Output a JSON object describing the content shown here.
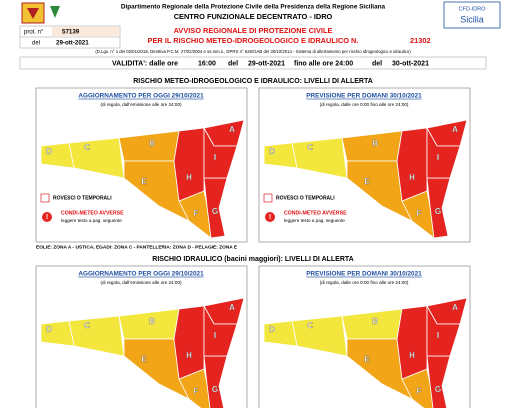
{
  "header": {
    "institution": "Dipartimento Regionale della Protezione Civile della Presidenza della Regione Siciliana",
    "centre": "CENTRO FUNZIONALE DECENTRATO - IDRO",
    "logo": "CFD-IDRO",
    "logo_region": "Sicilia"
  },
  "protocol": {
    "label": "prot. n°",
    "number": "57139",
    "date_label": "del",
    "date": "29-ott-2021"
  },
  "notice": {
    "title": "AVVISO REGIONALE DI PROTEZIONE CIVILE",
    "subtitle": "PER IL RISCHIO METEO-IDROGEOLOGICO E IDRAULICO N.",
    "number": "21302",
    "legal": "(D.Lgs. n° 1 del 02/01/2018, Direttiva P.C.M. 27/02/2004 e ss.mm.ii., DPRS n° 626/GAB del 30/10/2014 - Sistema di allertamento per rischio idrogeologico e idraulico)"
  },
  "validity": {
    "label": "VALIDITA': dalle ore",
    "from_time": "16:00",
    "from_label": "del",
    "from_date": "29-ott-2021",
    "until": "fino alle ore 24:00",
    "to_label": "del",
    "to_date": "30-ott-2021"
  },
  "sections": [
    {
      "title": "RISCHIO METEO-IDROGEOLOGICO E IDRAULICO: LIVELLI DI ALLERTA",
      "legend": {
        "storms": "ROVESCI O TEMPORALI",
        "adverse": "CONDI-METEO AVVERSE",
        "adverse_note": "leggere testo a pag. seguente"
      },
      "note": "EOLIE: ZONA A - USTICA, EGADI: ZONA C - PANTELLERIA: ZONA D - PELAGIE: ZONA E",
      "panels": [
        {
          "title": "AGGIORNAMENTO PER OGGI 29/10/2021",
          "subtitle": "(di regola, dall'emissione alle ore 24:00)",
          "zones": [
            {
              "label": "A",
              "color": "#e52420"
            },
            {
              "label": "B",
              "color": "#f2a516"
            },
            {
              "label": "C",
              "color": "#f3e63c"
            },
            {
              "label": "D",
              "color": "#f3e63c"
            },
            {
              "label": "E",
              "color": "#f2a516"
            },
            {
              "label": "F",
              "color": "#f2a516"
            },
            {
              "label": "G",
              "color": "#e52420"
            },
            {
              "label": "H",
              "color": "#e52420"
            },
            {
              "label": "I",
              "color": "#e52420"
            }
          ]
        },
        {
          "title": "PREVISIONE PER DOMANI 30/10/2021",
          "subtitle": "(di regola, dalle ore 0:00 fino alle ore 24:00)",
          "zones": [
            {
              "label": "A",
              "color": "#e52420"
            },
            {
              "label": "B",
              "color": "#f2a516"
            },
            {
              "label": "C",
              "color": "#f3e63c"
            },
            {
              "label": "D",
              "color": "#f3e63c"
            },
            {
              "label": "E",
              "color": "#f2a516"
            },
            {
              "label": "F",
              "color": "#f2a516"
            },
            {
              "label": "G",
              "color": "#e52420"
            },
            {
              "label": "H",
              "color": "#e52420"
            },
            {
              "label": "I",
              "color": "#e52420"
            }
          ]
        }
      ]
    },
    {
      "title": "RISCHIO IDRAULICO (bacini maggiori): LIVELLI DI ALLERTA",
      "panels": [
        {
          "title": "AGGIORNAMENTO PER OGGI 29/10/2021",
          "subtitle": "(di regola, dall'emissione alle ore 24:00)",
          "zones": [
            {
              "label": "A",
              "color": "#e52420"
            },
            {
              "label": "B",
              "color": "#f3e63c"
            },
            {
              "label": "C",
              "color": "#f3e63c"
            },
            {
              "label": "D",
              "color": "#f3e63c"
            },
            {
              "label": "E",
              "color": "#f2a516"
            },
            {
              "label": "F",
              "color": "#f2a516"
            },
            {
              "label": "G",
              "color": "#e52420"
            },
            {
              "label": "H",
              "color": "#e52420"
            },
            {
              "label": "I",
              "color": "#e52420"
            }
          ]
        },
        {
          "title": "PREVISIONE PER DOMANI 30/10/2021",
          "subtitle": "(di regola, dalle ore 0:00 fino alle ore 24:00)",
          "zones": [
            {
              "label": "A",
              "color": "#e52420"
            },
            {
              "label": "B",
              "color": "#f3e63c"
            },
            {
              "label": "C",
              "color": "#f3e63c"
            },
            {
              "label": "D",
              "color": "#f3e63c"
            },
            {
              "label": "E",
              "color": "#f2a516"
            },
            {
              "label": "F",
              "color": "#f2a516"
            },
            {
              "label": "G",
              "color": "#e52420"
            },
            {
              "label": "H",
              "color": "#e52420"
            },
            {
              "label": "I",
              "color": "#e52420"
            }
          ]
        }
      ]
    }
  ]
}
